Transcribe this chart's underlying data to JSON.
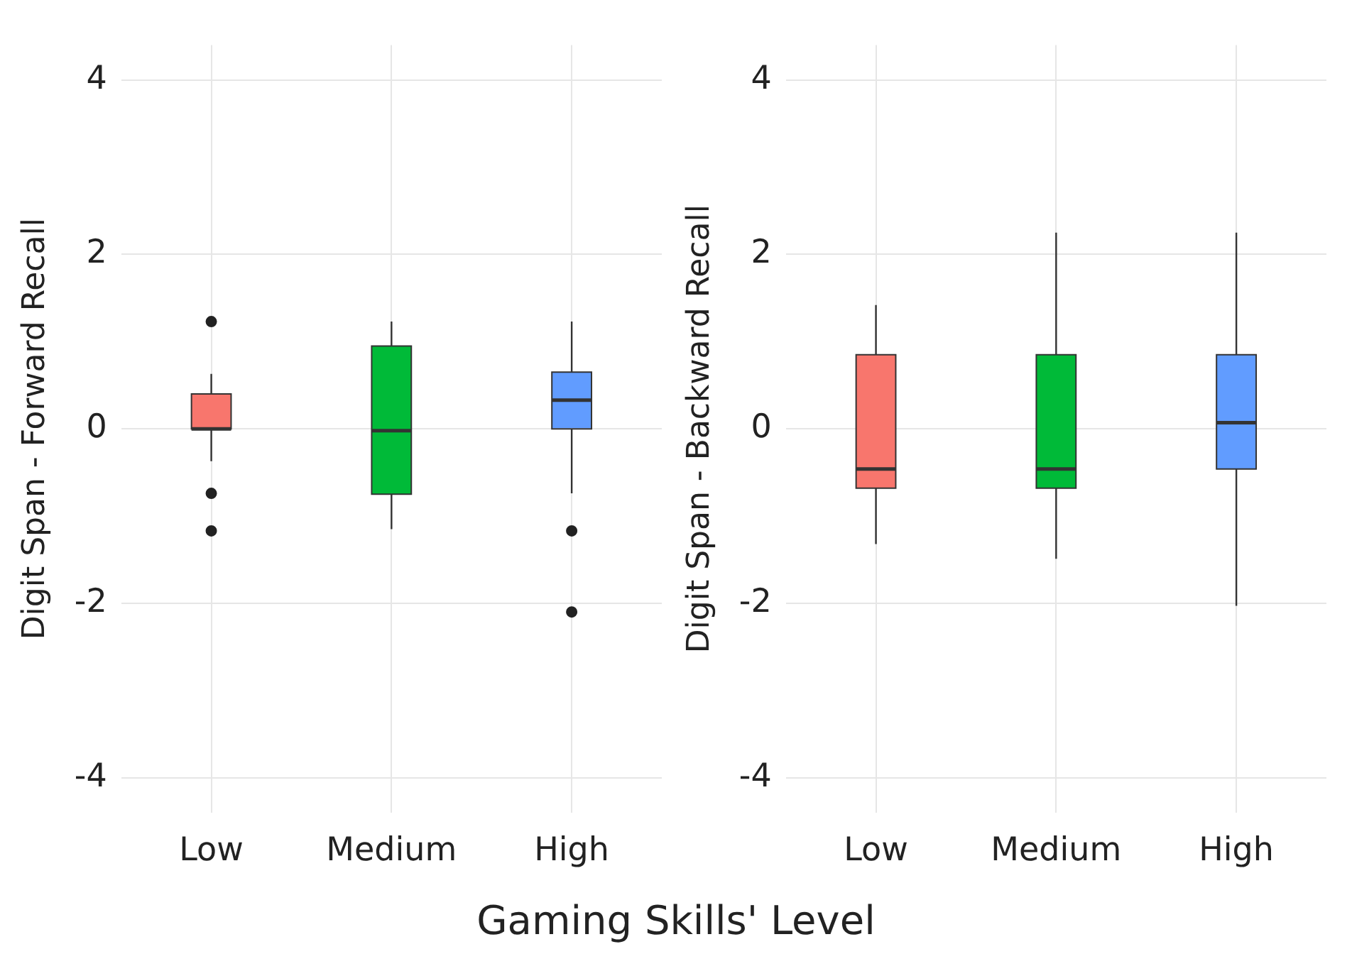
{
  "chart_data": [
    {
      "type": "box",
      "ylabel": "Digit Span - Forward Recall",
      "xlabel": "Gaming Skills' Level",
      "categories": [
        "Low",
        "Medium",
        "High"
      ],
      "colors": [
        "#f8766d",
        "#00ba38",
        "#619cff"
      ],
      "boxes": [
        {
          "low": -0.37,
          "q1": 0,
          "median": 0,
          "q3": 0.4,
          "high": 0.63,
          "outliers": [
            1.23,
            -0.74,
            -1.17
          ]
        },
        {
          "low": -1.15,
          "q1": -0.75,
          "median": -0.02,
          "q3": 0.95,
          "high": 1.23
        },
        {
          "low": -0.74,
          "q1": 0,
          "median": 0.33,
          "q3": 0.65,
          "high": 1.23,
          "outliers": [
            -1.17,
            -2.1
          ]
        }
      ],
      "ylim": [
        -4.4,
        4.4
      ],
      "yticks": [
        -4,
        -2,
        0,
        2,
        4
      ],
      "grid": true
    },
    {
      "type": "box",
      "ylabel": "Digit Span - Backward Recall",
      "categories": [
        "Low",
        "Medium",
        "High"
      ],
      "colors": [
        "#f8766d",
        "#00ba38",
        "#619cff"
      ],
      "boxes": [
        {
          "low": -1.32,
          "q1": -0.68,
          "median": -0.46,
          "q3": 0.85,
          "high": 1.42
        },
        {
          "low": -1.49,
          "q1": -0.68,
          "median": -0.46,
          "q3": 0.85,
          "high": 2.25
        },
        {
          "low": -2.03,
          "q1": -0.46,
          "median": 0.07,
          "q3": 0.85,
          "high": 2.25
        }
      ],
      "ylim": [
        -4.4,
        4.4
      ],
      "yticks": [
        -4,
        -2,
        0,
        2,
        4
      ],
      "grid": true
    }
  ]
}
